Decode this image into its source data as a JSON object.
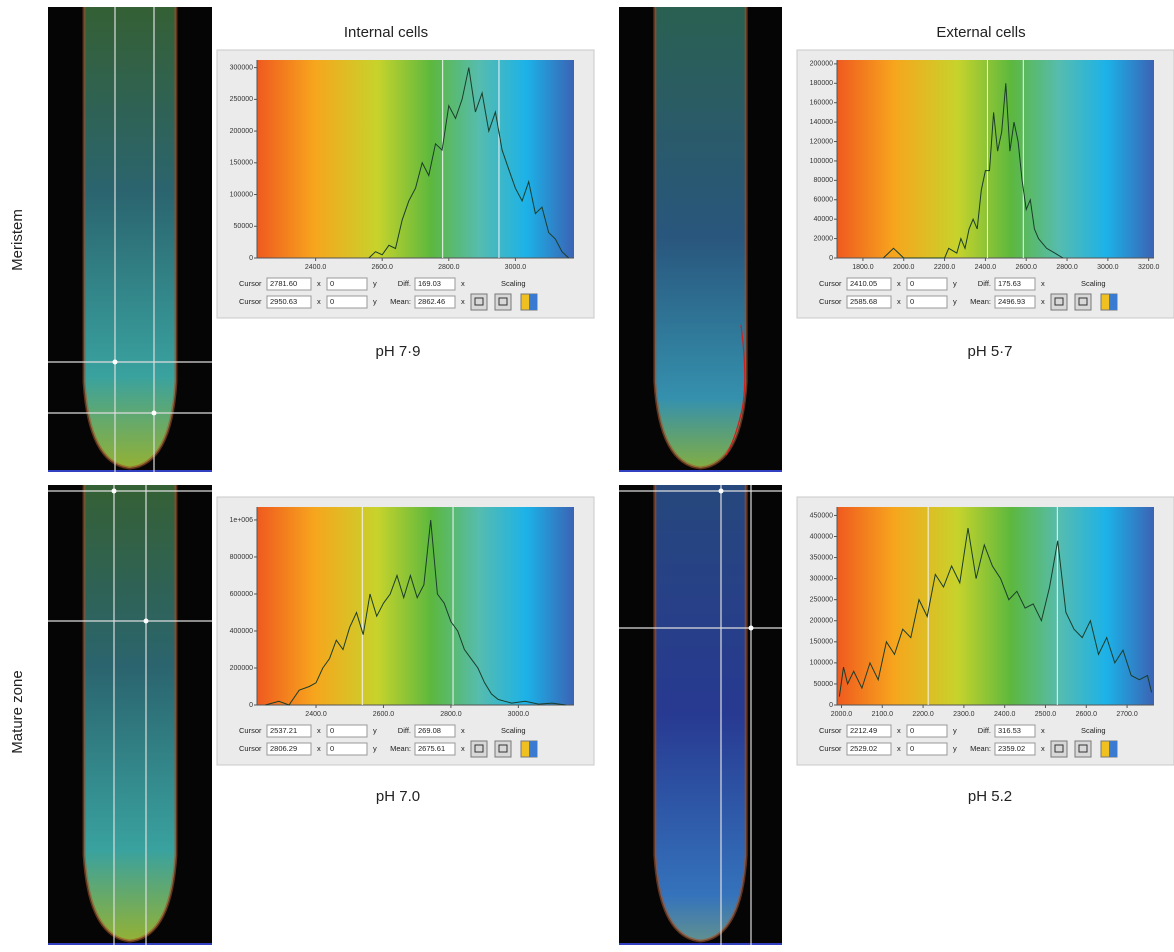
{
  "row_labels": [
    "Meristem",
    "Mature zone"
  ],
  "column_titles": [
    "Internal cells",
    "External cells"
  ],
  "ui_labels": {
    "cursor": "Cursor",
    "x": "x",
    "y": "y",
    "diff": "Diff.",
    "mean": "Mean:",
    "scaling": "Scaling"
  },
  "panels": [
    {
      "xlim": [
        2224,
        3176
      ],
      "ylim": [
        0,
        312000
      ],
      "xticks": [
        {
          "value": 2400,
          "label": "2400.0"
        },
        {
          "value": 2600,
          "label": "2600.0"
        },
        {
          "value": 2800,
          "label": "2800.0"
        },
        {
          "value": 3000,
          "label": "3000.0"
        }
      ],
      "yticks": [
        0,
        50000,
        100000,
        150000,
        200000,
        250000,
        300000
      ],
      "curve": {
        "x": [
          2560,
          2580,
          2600,
          2620,
          2640,
          2660,
          2680,
          2700,
          2720,
          2740,
          2760,
          2780,
          2800,
          2820,
          2840,
          2860,
          2880,
          2900,
          2920,
          2940,
          2960,
          2980,
          3000,
          3020,
          3040,
          3060,
          3080,
          3100,
          3120,
          3140,
          3160
        ],
        "y": [
          0,
          10000,
          5000,
          20000,
          15000,
          60000,
          90000,
          110000,
          150000,
          130000,
          180000,
          170000,
          240000,
          220000,
          250000,
          300000,
          230000,
          260000,
          200000,
          230000,
          170000,
          140000,
          110000,
          90000,
          120000,
          70000,
          80000,
          40000,
          30000,
          10000,
          0
        ]
      },
      "cursor1": {
        "x": "2781.60",
        "y": "0"
      },
      "cursor2": {
        "x": "2950.63",
        "y": "0"
      },
      "diff": "169.03",
      "mean": "2862.46",
      "ph_label": "pH 7·9"
    },
    {
      "xlim": [
        1673,
        3226
      ],
      "ylim": [
        0,
        204000
      ],
      "xticks": [
        {
          "value": 1800,
          "label": "1800.0"
        },
        {
          "value": 2000,
          "label": "2000.0"
        },
        {
          "value": 2200,
          "label": "2200.0"
        },
        {
          "value": 2400,
          "label": "2400.0"
        },
        {
          "value": 2600,
          "label": "2600.0"
        },
        {
          "value": 2800,
          "label": "2800.0"
        },
        {
          "value": 3000,
          "label": "3000.0"
        },
        {
          "value": 3200,
          "label": "3200.0"
        }
      ],
      "yticks": [
        0,
        20000,
        40000,
        60000,
        80000,
        100000,
        120000,
        140000,
        160000,
        180000,
        200000
      ],
      "curve": {
        "x": [
          1900,
          1950,
          2000,
          2200,
          2220,
          2260,
          2280,
          2300,
          2320,
          2340,
          2360,
          2380,
          2400,
          2420,
          2440,
          2460,
          2480,
          2500,
          2520,
          2540,
          2560,
          2580,
          2600,
          2620,
          2640,
          2660,
          2700,
          2740,
          2780
        ],
        "y": [
          0,
          10000,
          0,
          0,
          10000,
          5000,
          20000,
          10000,
          30000,
          40000,
          30000,
          70000,
          90000,
          90000,
          150000,
          110000,
          130000,
          180000,
          110000,
          140000,
          120000,
          80000,
          50000,
          60000,
          30000,
          20000,
          10000,
          5000,
          0
        ]
      },
      "cursor1": {
        "x": "2410.05",
        "y": "0"
      },
      "cursor2": {
        "x": "2585.68",
        "y": "0"
      },
      "diff": "175.63",
      "mean": "2496.93",
      "ph_label": "pH 5·7"
    },
    {
      "xlim": [
        2225,
        3165
      ],
      "ylim": [
        0,
        1070000
      ],
      "xticks": [
        {
          "value": 2400,
          "label": "2400.0"
        },
        {
          "value": 2600,
          "label": "2600.0"
        },
        {
          "value": 2800,
          "label": "2800.0"
        },
        {
          "value": 3000,
          "label": "3000.0"
        }
      ],
      "yticks": [
        0,
        200000,
        400000,
        600000,
        800000,
        {
          "value": 1000000,
          "label": "1e+006"
        }
      ],
      "curve": {
        "x": [
          2250,
          2290,
          2320,
          2350,
          2380,
          2400,
          2420,
          2440,
          2460,
          2480,
          2500,
          2520,
          2540,
          2560,
          2580,
          2600,
          2620,
          2640,
          2660,
          2680,
          2700,
          2720,
          2740,
          2760,
          2780,
          2800,
          2820,
          2840,
          2860,
          2880,
          2900,
          2920,
          2940,
          2960,
          2980,
          3020,
          3060,
          3100,
          3140
        ],
        "y": [
          0,
          20000,
          0,
          80000,
          100000,
          120000,
          200000,
          250000,
          350000,
          300000,
          420000,
          500000,
          380000,
          600000,
          480000,
          550000,
          600000,
          700000,
          580000,
          700000,
          580000,
          650000,
          1000000,
          600000,
          550000,
          450000,
          400000,
          300000,
          250000,
          200000,
          120000,
          60000,
          30000,
          20000,
          10000,
          20000,
          5000,
          10000,
          0
        ]
      },
      "cursor1": {
        "x": "2537.21",
        "y": "0"
      },
      "cursor2": {
        "x": "2806.29",
        "y": "0"
      },
      "diff": "269.08",
      "mean": "2675.61",
      "ph_label": "pH 7.0"
    },
    {
      "xlim": [
        1989,
        2766
      ],
      "ylim": [
        0,
        470000
      ],
      "xticks": [
        {
          "value": 2000,
          "label": "2000.0"
        },
        {
          "value": 2100,
          "label": "2100.0"
        },
        {
          "value": 2200,
          "label": "2200.0"
        },
        {
          "value": 2300,
          "label": "2300.0"
        },
        {
          "value": 2400,
          "label": "2400.0"
        },
        {
          "value": 2500,
          "label": "2500.0"
        },
        {
          "value": 2600,
          "label": "2600.0"
        },
        {
          "value": 2700,
          "label": "2700.0"
        }
      ],
      "yticks": [
        0,
        50000,
        100000,
        150000,
        200000,
        250000,
        300000,
        350000,
        400000,
        450000
      ],
      "curve": {
        "x": [
          1995,
          2005,
          2015,
          2030,
          2050,
          2070,
          2090,
          2110,
          2130,
          2150,
          2170,
          2190,
          2210,
          2230,
          2250,
          2270,
          2290,
          2310,
          2330,
          2350,
          2370,
          2390,
          2410,
          2430,
          2450,
          2470,
          2490,
          2510,
          2530,
          2550,
          2570,
          2590,
          2610,
          2630,
          2650,
          2670,
          2690,
          2710,
          2730,
          2750,
          2760
        ],
        "y": [
          20000,
          90000,
          50000,
          80000,
          40000,
          100000,
          60000,
          150000,
          120000,
          180000,
          160000,
          250000,
          210000,
          310000,
          280000,
          330000,
          290000,
          420000,
          300000,
          380000,
          330000,
          300000,
          250000,
          270000,
          230000,
          240000,
          200000,
          280000,
          390000,
          220000,
          180000,
          160000,
          200000,
          120000,
          160000,
          100000,
          130000,
          70000,
          60000,
          70000,
          30000
        ]
      },
      "cursor1": {
        "x": "2212.49",
        "y": "0"
      },
      "cursor2": {
        "x": "2529.02",
        "y": "0"
      },
      "diff": "316.53",
      "mean": "2359.02",
      "ph_label": "pH 5.2"
    }
  ]
}
